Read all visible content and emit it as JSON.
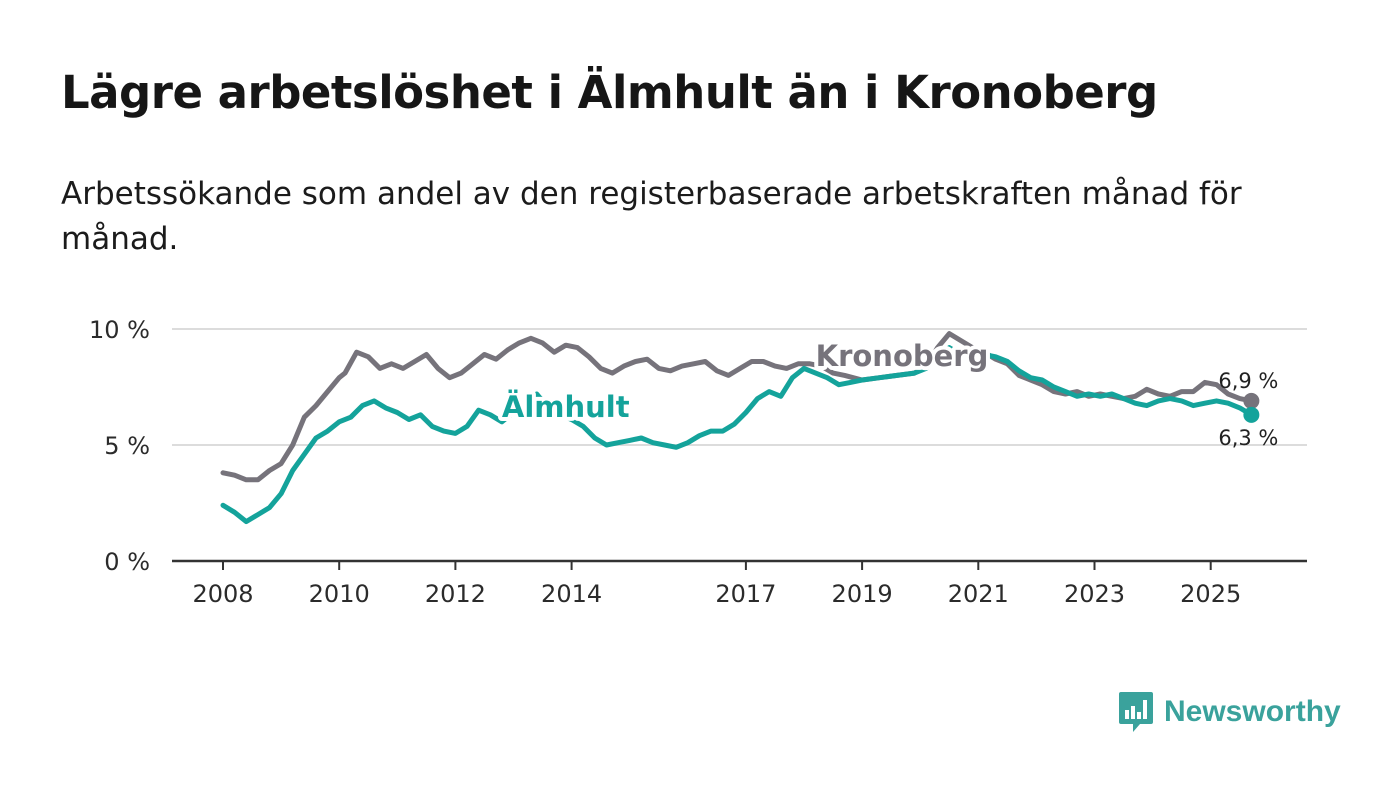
{
  "title": "Lägre arbetslöshet i Älmhult än i Kronoberg",
  "subtitle": "Arbetssökande som andel av den registerbaserade arbetskraften månad för månad.",
  "brand": "Newsworthy",
  "colors": {
    "kronoberg": "#76737b",
    "almhult": "#14a39b",
    "grid": "#dcdcdc",
    "axis": "#333333",
    "brand": "#3aa29c"
  },
  "chart_data": {
    "type": "line",
    "ylim": [
      0,
      10
    ],
    "xlim": [
      2007.6,
      2027.1
    ],
    "y_ticks": [
      {
        "value": 0,
        "label": "0 %"
      },
      {
        "value": 5,
        "label": "5 %"
      },
      {
        "value": 10,
        "label": "10 %"
      }
    ],
    "x_ticks": [
      {
        "value": 2008,
        "label": "2008"
      },
      {
        "value": 2010,
        "label": "2010"
      },
      {
        "value": 2012,
        "label": "2012"
      },
      {
        "value": 2014,
        "label": "2014"
      },
      {
        "value": 2017,
        "label": "2017"
      },
      {
        "value": 2019,
        "label": "2019"
      },
      {
        "value": 2021,
        "label": "2021"
      },
      {
        "value": 2023,
        "label": "2023"
      },
      {
        "value": 2025,
        "label": "2025"
      }
    ],
    "series": [
      {
        "name": "Kronoberg",
        "label_pos": {
          "x": 2018.2,
          "y": 8.4
        },
        "end_label": "6,9 %",
        "points": [
          [
            2008,
            3.8
          ],
          [
            2008.2,
            3.7
          ],
          [
            2008.4,
            3.5
          ],
          [
            2008.6,
            3.5
          ],
          [
            2008.8,
            3.9
          ],
          [
            2009,
            4.2
          ],
          [
            2009.2,
            5.0
          ],
          [
            2009.4,
            6.2
          ],
          [
            2009.6,
            6.7
          ],
          [
            2009.8,
            7.3
          ],
          [
            2010,
            7.9
          ],
          [
            2010.1,
            8.1
          ],
          [
            2010.3,
            9.0
          ],
          [
            2010.5,
            8.8
          ],
          [
            2010.7,
            8.3
          ],
          [
            2010.9,
            8.5
          ],
          [
            2011.1,
            8.3
          ],
          [
            2011.3,
            8.6
          ],
          [
            2011.5,
            8.9
          ],
          [
            2011.7,
            8.3
          ],
          [
            2011.9,
            7.9
          ],
          [
            2012.1,
            8.1
          ],
          [
            2012.3,
            8.5
          ],
          [
            2012.5,
            8.9
          ],
          [
            2012.7,
            8.7
          ],
          [
            2012.9,
            9.1
          ],
          [
            2013.1,
            9.4
          ],
          [
            2013.3,
            9.6
          ],
          [
            2013.5,
            9.4
          ],
          [
            2013.7,
            9.0
          ],
          [
            2013.9,
            9.3
          ],
          [
            2014.1,
            9.2
          ],
          [
            2014.3,
            8.8
          ],
          [
            2014.5,
            8.3
          ],
          [
            2014.7,
            8.1
          ],
          [
            2014.9,
            8.4
          ],
          [
            2015.1,
            8.6
          ],
          [
            2015.3,
            8.7
          ],
          [
            2015.5,
            8.3
          ],
          [
            2015.7,
            8.2
          ],
          [
            2015.9,
            8.4
          ],
          [
            2016.1,
            8.5
          ],
          [
            2016.3,
            8.6
          ],
          [
            2016.5,
            8.2
          ],
          [
            2016.7,
            8.0
          ],
          [
            2016.9,
            8.3
          ],
          [
            2017.1,
            8.6
          ],
          [
            2017.3,
            8.6
          ],
          [
            2017.5,
            8.4
          ],
          [
            2017.7,
            8.3
          ],
          [
            2017.9,
            8.5
          ],
          [
            2018.1,
            8.5
          ],
          [
            2018.3,
            8.4
          ],
          [
            2018.5,
            8.1
          ],
          [
            2018.7,
            8.0
          ],
          [
            2019.0,
            7.8
          ],
          [
            2019.3,
            7.9
          ],
          [
            2019.6,
            8.0
          ],
          [
            2019.9,
            8.1
          ],
          [
            2020.1,
            8.4
          ],
          [
            2020.3,
            9.2
          ],
          [
            2020.5,
            9.8
          ],
          [
            2020.7,
            9.5
          ],
          [
            2020.9,
            9.2
          ],
          [
            2021.1,
            9.0
          ],
          [
            2021.3,
            8.7
          ],
          [
            2021.5,
            8.5
          ],
          [
            2021.7,
            8.0
          ],
          [
            2021.9,
            7.8
          ],
          [
            2022.1,
            7.6
          ],
          [
            2022.3,
            7.3
          ],
          [
            2022.5,
            7.2
          ],
          [
            2022.7,
            7.3
          ],
          [
            2022.9,
            7.1
          ],
          [
            2023.1,
            7.2
          ],
          [
            2023.3,
            7.1
          ],
          [
            2023.5,
            7.0
          ],
          [
            2023.7,
            7.1
          ],
          [
            2023.9,
            7.4
          ],
          [
            2024.1,
            7.2
          ],
          [
            2024.3,
            7.1
          ],
          [
            2024.5,
            7.3
          ],
          [
            2024.7,
            7.3
          ],
          [
            2024.9,
            7.7
          ],
          [
            2025.1,
            7.6
          ],
          [
            2025.3,
            7.2
          ],
          [
            2025.5,
            7.0
          ],
          [
            2025.7,
            6.9
          ]
        ]
      },
      {
        "name": "Älmhult",
        "label_pos": {
          "x": 2012.8,
          "y": 6.2
        },
        "end_label": "6,3 %",
        "points": [
          [
            2008,
            2.4
          ],
          [
            2008.2,
            2.1
          ],
          [
            2008.4,
            1.7
          ],
          [
            2008.6,
            2.0
          ],
          [
            2008.8,
            2.3
          ],
          [
            2009,
            2.9
          ],
          [
            2009.2,
            3.9
          ],
          [
            2009.4,
            4.6
          ],
          [
            2009.6,
            5.3
          ],
          [
            2009.8,
            5.6
          ],
          [
            2010,
            6.0
          ],
          [
            2010.2,
            6.2
          ],
          [
            2010.4,
            6.7
          ],
          [
            2010.6,
            6.9
          ],
          [
            2010.8,
            6.6
          ],
          [
            2011,
            6.4
          ],
          [
            2011.2,
            6.1
          ],
          [
            2011.4,
            6.3
          ],
          [
            2011.6,
            5.8
          ],
          [
            2011.8,
            5.6
          ],
          [
            2012,
            5.5
          ],
          [
            2012.2,
            5.8
          ],
          [
            2012.4,
            6.5
          ],
          [
            2012.6,
            6.3
          ],
          [
            2012.8,
            6.0
          ],
          [
            2013,
            6.4
          ],
          [
            2013.2,
            6.8
          ],
          [
            2013.4,
            7.2
          ],
          [
            2013.6,
            6.6
          ],
          [
            2013.8,
            6.3
          ],
          [
            2014,
            6.1
          ],
          [
            2014.2,
            5.8
          ],
          [
            2014.4,
            5.3
          ],
          [
            2014.6,
            5.0
          ],
          [
            2014.8,
            5.1
          ],
          [
            2015,
            5.2
          ],
          [
            2015.2,
            5.3
          ],
          [
            2015.4,
            5.1
          ],
          [
            2015.6,
            5.0
          ],
          [
            2015.8,
            4.9
          ],
          [
            2016,
            5.1
          ],
          [
            2016.2,
            5.4
          ],
          [
            2016.4,
            5.6
          ],
          [
            2016.6,
            5.6
          ],
          [
            2016.8,
            5.9
          ],
          [
            2017,
            6.4
          ],
          [
            2017.2,
            7.0
          ],
          [
            2017.4,
            7.3
          ],
          [
            2017.6,
            7.1
          ],
          [
            2017.8,
            7.9
          ],
          [
            2018.0,
            8.3
          ],
          [
            2018.2,
            8.1
          ],
          [
            2018.4,
            7.9
          ],
          [
            2018.6,
            7.6
          ],
          [
            2018.8,
            7.7
          ],
          [
            2019.0,
            7.8
          ],
          [
            2019.3,
            7.9
          ],
          [
            2019.6,
            8.0
          ],
          [
            2019.9,
            8.1
          ],
          [
            2020.1,
            8.3
          ],
          [
            2020.3,
            8.7
          ],
          [
            2020.5,
            9.2
          ],
          [
            2020.7,
            8.9
          ],
          [
            2020.9,
            9.0
          ],
          [
            2021.1,
            8.9
          ],
          [
            2021.3,
            8.8
          ],
          [
            2021.5,
            8.6
          ],
          [
            2021.7,
            8.2
          ],
          [
            2021.9,
            7.9
          ],
          [
            2022.1,
            7.8
          ],
          [
            2022.3,
            7.5
          ],
          [
            2022.5,
            7.3
          ],
          [
            2022.7,
            7.1
          ],
          [
            2022.9,
            7.2
          ],
          [
            2023.1,
            7.1
          ],
          [
            2023.3,
            7.2
          ],
          [
            2023.5,
            7.0
          ],
          [
            2023.7,
            6.8
          ],
          [
            2023.9,
            6.7
          ],
          [
            2024.1,
            6.9
          ],
          [
            2024.3,
            7.0
          ],
          [
            2024.5,
            6.9
          ],
          [
            2024.7,
            6.7
          ],
          [
            2024.9,
            6.8
          ],
          [
            2025.1,
            6.9
          ],
          [
            2025.3,
            6.8
          ],
          [
            2025.5,
            6.6
          ],
          [
            2025.7,
            6.3
          ]
        ]
      }
    ]
  }
}
